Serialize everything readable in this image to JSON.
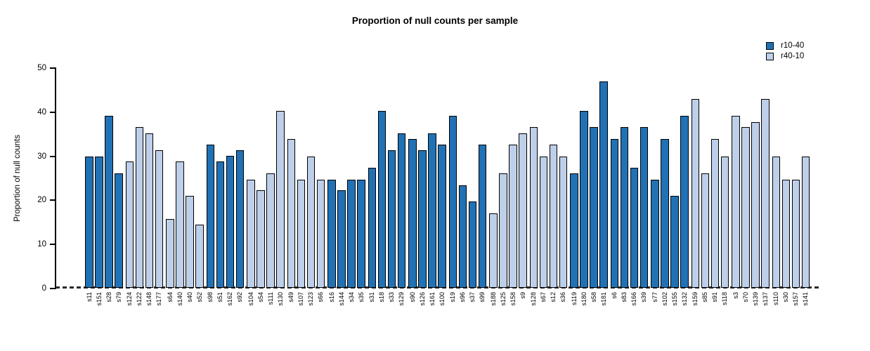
{
  "chart_data": {
    "type": "bar",
    "title": "Proportion of null counts per sample",
    "ylabel": "Proportion of null counts",
    "xlabel": "",
    "ylim": [
      0,
      50
    ],
    "yticks": [
      0,
      10,
      20,
      30,
      40,
      50
    ],
    "grid": false,
    "legend_position": "top-right",
    "group_size": 4,
    "legend": [
      {
        "label": "r10-40",
        "color": "#2171B5"
      },
      {
        "label": "r40-10",
        "color": "#BDCFE9"
      }
    ],
    "bars": [
      {
        "label": "s11",
        "value": 29.8,
        "series": "r10-40"
      },
      {
        "label": "s151",
        "value": 29.8,
        "series": "r10-40"
      },
      {
        "label": "s28",
        "value": 39.0,
        "series": "r10-40"
      },
      {
        "label": "s79",
        "value": 26.0,
        "series": "r10-40"
      },
      {
        "label": "s124",
        "value": 28.6,
        "series": "r40-10"
      },
      {
        "label": "s122",
        "value": 36.4,
        "series": "r40-10"
      },
      {
        "label": "s148",
        "value": 35.0,
        "series": "r40-10"
      },
      {
        "label": "s177",
        "value": 31.2,
        "series": "r40-10"
      },
      {
        "label": "s64",
        "value": 15.6,
        "series": "r40-10"
      },
      {
        "label": "s140",
        "value": 28.6,
        "series": "r40-10"
      },
      {
        "label": "s40",
        "value": 20.9,
        "series": "r40-10"
      },
      {
        "label": "s52",
        "value": 14.4,
        "series": "r40-10"
      },
      {
        "label": "s98",
        "value": 32.5,
        "series": "r10-40"
      },
      {
        "label": "s51",
        "value": 28.6,
        "series": "r10-40"
      },
      {
        "label": "s162",
        "value": 30.0,
        "series": "r10-40"
      },
      {
        "label": "s92",
        "value": 31.2,
        "series": "r10-40"
      },
      {
        "label": "s104",
        "value": 24.5,
        "series": "r40-10"
      },
      {
        "label": "s54",
        "value": 22.1,
        "series": "r40-10"
      },
      {
        "label": "s111",
        "value": 26.0,
        "series": "r40-10"
      },
      {
        "label": "s130",
        "value": 40.2,
        "series": "r40-10"
      },
      {
        "label": "s49",
        "value": 33.7,
        "series": "r40-10"
      },
      {
        "label": "s107",
        "value": 24.5,
        "series": "r40-10"
      },
      {
        "label": "s123",
        "value": 29.8,
        "series": "r40-10"
      },
      {
        "label": "s66",
        "value": 24.5,
        "series": "r40-10"
      },
      {
        "label": "s16",
        "value": 24.5,
        "series": "r10-40"
      },
      {
        "label": "s144",
        "value": 22.1,
        "series": "r10-40"
      },
      {
        "label": "s34",
        "value": 24.5,
        "series": "r10-40"
      },
      {
        "label": "s35",
        "value": 24.5,
        "series": "r10-40"
      },
      {
        "label": "s31",
        "value": 27.3,
        "series": "r10-40"
      },
      {
        "label": "s18",
        "value": 40.2,
        "series": "r10-40"
      },
      {
        "label": "s33",
        "value": 31.2,
        "series": "r10-40"
      },
      {
        "label": "s129",
        "value": 35.0,
        "series": "r10-40"
      },
      {
        "label": "s90",
        "value": 33.7,
        "series": "r10-40"
      },
      {
        "label": "s126",
        "value": 31.2,
        "series": "r10-40"
      },
      {
        "label": "s161",
        "value": 35.0,
        "series": "r10-40"
      },
      {
        "label": "s100",
        "value": 32.5,
        "series": "r10-40"
      },
      {
        "label": "s19",
        "value": 39.0,
        "series": "r10-40"
      },
      {
        "label": "s96",
        "value": 23.3,
        "series": "r10-40"
      },
      {
        "label": "s37",
        "value": 19.6,
        "series": "r10-40"
      },
      {
        "label": "s99",
        "value": 32.5,
        "series": "r10-40"
      },
      {
        "label": "s188",
        "value": 16.9,
        "series": "r40-10"
      },
      {
        "label": "s125",
        "value": 26.0,
        "series": "r40-10"
      },
      {
        "label": "s158",
        "value": 32.5,
        "series": "r40-10"
      },
      {
        "label": "s9",
        "value": 35.0,
        "series": "r40-10"
      },
      {
        "label": "s128",
        "value": 36.4,
        "series": "r40-10"
      },
      {
        "label": "s67",
        "value": 29.8,
        "series": "r40-10"
      },
      {
        "label": "s12",
        "value": 32.5,
        "series": "r40-10"
      },
      {
        "label": "s36",
        "value": 29.8,
        "series": "r40-10"
      },
      {
        "label": "s119",
        "value": 26.0,
        "series": "r10-40"
      },
      {
        "label": "s180",
        "value": 40.2,
        "series": "r10-40"
      },
      {
        "label": "s58",
        "value": 36.4,
        "series": "r10-40"
      },
      {
        "label": "s181",
        "value": 46.8,
        "series": "r10-40"
      },
      {
        "label": "s6",
        "value": 33.7,
        "series": "r10-40"
      },
      {
        "label": "s83",
        "value": 36.4,
        "series": "r10-40"
      },
      {
        "label": "s166",
        "value": 27.3,
        "series": "r10-40"
      },
      {
        "label": "s39",
        "value": 36.4,
        "series": "r10-40"
      },
      {
        "label": "s77",
        "value": 24.5,
        "series": "r10-40"
      },
      {
        "label": "s102",
        "value": 33.7,
        "series": "r10-40"
      },
      {
        "label": "s155",
        "value": 20.9,
        "series": "r10-40"
      },
      {
        "label": "s132",
        "value": 39.0,
        "series": "r10-40"
      },
      {
        "label": "s159",
        "value": 42.8,
        "series": "r40-10"
      },
      {
        "label": "s85",
        "value": 26.0,
        "series": "r40-10"
      },
      {
        "label": "s91",
        "value": 33.7,
        "series": "r40-10"
      },
      {
        "label": "s118",
        "value": 29.8,
        "series": "r40-10"
      },
      {
        "label": "s3",
        "value": 39.0,
        "series": "r40-10"
      },
      {
        "label": "s70",
        "value": 36.4,
        "series": "r40-10"
      },
      {
        "label": "s139",
        "value": 37.6,
        "series": "r40-10"
      },
      {
        "label": "s137",
        "value": 42.8,
        "series": "r40-10"
      },
      {
        "label": "s110",
        "value": 29.8,
        "series": "r40-10"
      },
      {
        "label": "s30",
        "value": 24.5,
        "series": "r40-10"
      },
      {
        "label": "s157",
        "value": 24.5,
        "series": "r40-10"
      },
      {
        "label": "s141",
        "value": 29.8,
        "series": "r40-10"
      }
    ]
  }
}
